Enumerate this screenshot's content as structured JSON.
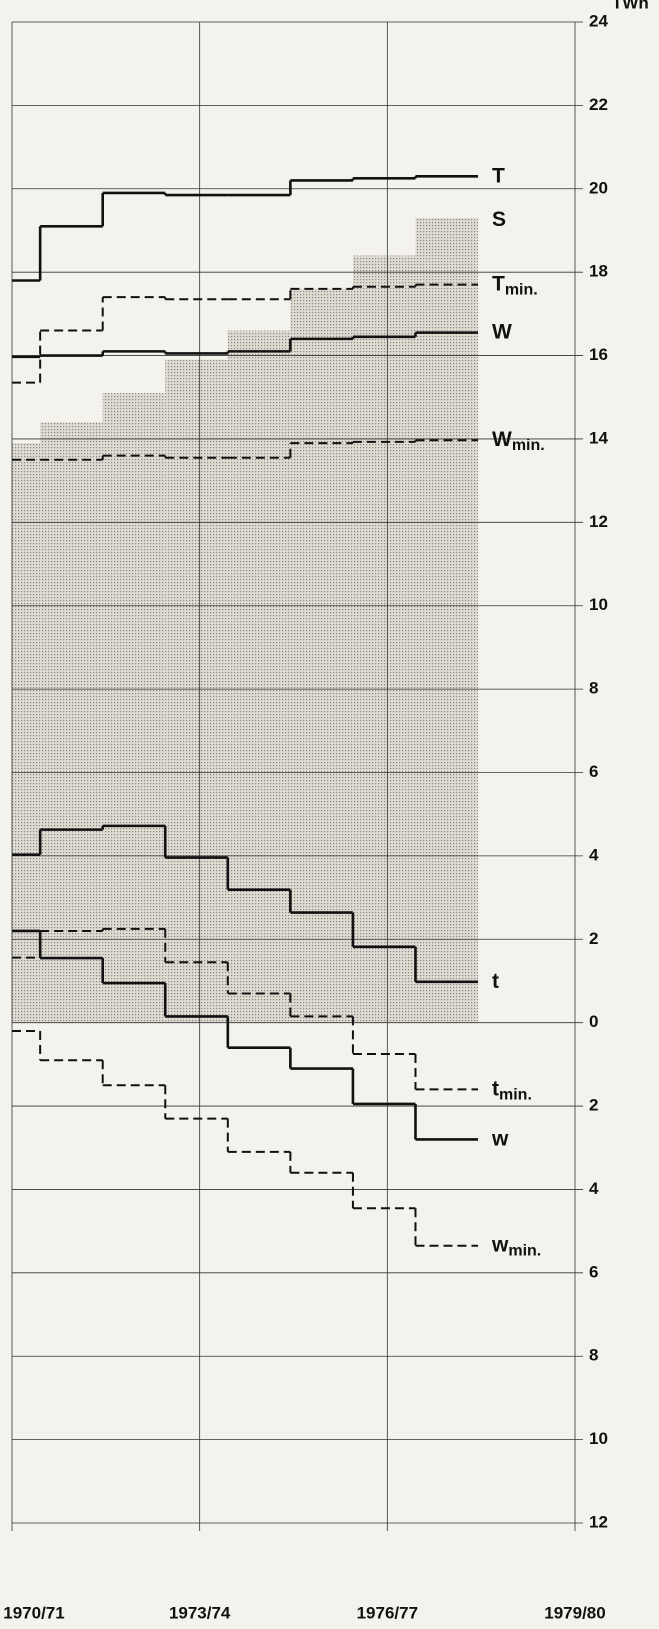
{
  "chart_data": {
    "type": "step",
    "y_unit": "TWh",
    "x_edges": [
      0,
      0.45,
      1.45,
      2.45,
      3.45,
      4.45,
      5.45,
      6.45,
      7.45
    ],
    "xlim": [
      0,
      9
    ],
    "xticks": [
      {
        "value": 0,
        "label": "1970/71"
      },
      {
        "value": 3,
        "label": "1973/74"
      },
      {
        "value": 6,
        "label": "1976/77"
      },
      {
        "value": 9,
        "label": "1979/80"
      }
    ],
    "ylim": [
      -12,
      24
    ],
    "yticks": [
      {
        "value": -12,
        "label": "12"
      },
      {
        "value": -10,
        "label": "10"
      },
      {
        "value": -8,
        "label": "8"
      },
      {
        "value": -6,
        "label": "6"
      },
      {
        "value": -4,
        "label": "4"
      },
      {
        "value": -2,
        "label": "2"
      },
      0,
      2,
      4,
      6,
      8,
      10,
      12,
      14,
      16,
      18,
      20,
      22,
      24
    ],
    "grid": true,
    "series": [
      {
        "name": "S",
        "kind": "area",
        "color": "#111111",
        "values": [
          13.9,
          14.4,
          15.1,
          15.9,
          16.6,
          17.6,
          18.4,
          19.3
        ]
      },
      {
        "name": "T",
        "kind": "solid",
        "color": "#111111",
        "values": [
          17.8,
          19.1,
          19.9,
          19.85,
          19.85,
          20.2,
          20.25,
          20.3
        ]
      },
      {
        "name": "T",
        "subscript": "min.",
        "kind": "dashed",
        "color": "#111111",
        "values": [
          15.35,
          16.6,
          17.4,
          17.35,
          17.35,
          17.6,
          17.65,
          17.7
        ]
      },
      {
        "name": "W",
        "kind": "solid",
        "color": "#111111",
        "values": [
          15.97,
          16.0,
          16.1,
          16.05,
          16.1,
          16.4,
          16.45,
          16.55
        ]
      },
      {
        "name": "W",
        "subscript": "min.",
        "kind": "dashed",
        "color": "#111111",
        "values": [
          13.5,
          13.5,
          13.6,
          13.55,
          13.55,
          13.9,
          13.93,
          13.97
        ]
      },
      {
        "name": "t",
        "kind": "solid",
        "color": "#111111",
        "values": [
          4.03,
          4.63,
          4.72,
          3.96,
          3.19,
          2.64,
          1.82,
          0.98
        ]
      },
      {
        "name": "t",
        "subscript": "min.",
        "kind": "dashed",
        "color": "#111111",
        "values": [
          1.56,
          2.2,
          2.25,
          1.45,
          0.7,
          0.15,
          -0.75,
          -1.6
        ]
      },
      {
        "name": "w",
        "kind": "solid",
        "color": "#111111",
        "values": [
          2.2,
          1.55,
          0.95,
          0.15,
          -0.6,
          -1.1,
          -1.95,
          -2.8
        ]
      },
      {
        "name": "w",
        "subscript": "min.",
        "kind": "dashed",
        "color": "#111111",
        "values": [
          -0.2,
          -0.9,
          -1.5,
          -2.3,
          -3.1,
          -3.6,
          -4.45,
          -5.35
        ]
      }
    ]
  }
}
